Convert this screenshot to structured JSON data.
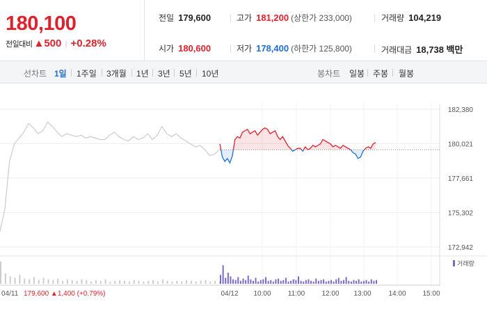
{
  "quote": {
    "current_price": "180,100",
    "change_label": "전일대비",
    "change_arrow": "▲",
    "change_value": "500",
    "change_pct": "+0.28%"
  },
  "stats": {
    "prev_close": {
      "label": "전일",
      "value": "179,600"
    },
    "high": {
      "label": "고가",
      "value": "181,200",
      "sub": "(상한가 233,000)"
    },
    "volume": {
      "label": "거래량",
      "value": "104,219"
    },
    "open": {
      "label": "시가",
      "value": "180,600"
    },
    "low": {
      "label": "저가",
      "value": "178,400",
      "sub": "(하한가 125,800)"
    },
    "turnover": {
      "label": "거래대금",
      "value": "18,738 백만"
    }
  },
  "line_tabs": {
    "label": "선차트",
    "items": [
      "1일",
      "1주일",
      "3개월",
      "1년",
      "3년",
      "5년",
      "10년"
    ],
    "selected": 0
  },
  "candle_tabs": {
    "label": "봉차트",
    "items": [
      "일봉",
      "주봉",
      "월봉"
    ]
  },
  "colors": {
    "up": "#e0212b",
    "down": "#1f6fd6",
    "prev_day": "#cccccc",
    "volume": "#7b68c8"
  },
  "chart_data": {
    "type": "line",
    "yticks": [
      "182,380",
      "180,021",
      "177,661",
      "175,302",
      "172,942"
    ],
    "ytick_values": [
      182380,
      180021,
      177661,
      175302,
      172942
    ],
    "ylim": [
      172942,
      182380
    ],
    "xticks": [
      "04/12",
      "10:00",
      "11:00",
      "12:00",
      "13:00",
      "14:00",
      "15:00"
    ],
    "prev_day_label": "04/11",
    "prev_day_summary": {
      "close": "179,600",
      "arrow": "▲",
      "change": "1,400",
      "pct": "(+0.79%)"
    },
    "baseline": 179600,
    "legend": "거래량",
    "prev_day_series": [
      174000,
      175500,
      178800,
      180000,
      180400,
      180800,
      181400,
      181100,
      180700,
      180900,
      181500,
      181200,
      180800,
      180500,
      180700,
      180600,
      180500,
      180600,
      180400,
      180500,
      180400,
      180300,
      180300,
      180600,
      180800,
      180500,
      180300,
      180200,
      180500,
      180300,
      180400,
      180700,
      180300,
      180600,
      181200,
      180700,
      180500,
      180700,
      180400,
      180200,
      180000,
      179800,
      179900,
      179600,
      179200,
      179300,
      179600
    ],
    "today_series": [
      180000,
      179100,
      178800,
      179000,
      178700,
      179200,
      180300,
      180500,
      180400,
      180800,
      180900,
      181000,
      180700,
      180800,
      180900,
      180600,
      180800,
      181000,
      181100,
      181000,
      180700,
      180800,
      180900,
      180500,
      180300,
      180500,
      180200,
      179900,
      179700,
      179500,
      179600,
      179700,
      179700,
      179500,
      179800,
      179600,
      179700,
      179900,
      179800,
      179900,
      180000,
      180300,
      180200,
      180100,
      180000,
      179800,
      179900,
      179800,
      179700,
      179900,
      179800,
      179700,
      179600,
      179400,
      179300,
      179000,
      179100,
      179500,
      179700,
      179800,
      179700,
      180000,
      180100
    ],
    "volume_today": [
      12,
      25,
      8,
      15,
      10,
      6,
      5,
      9,
      4,
      7,
      5,
      11,
      6,
      4,
      8,
      3,
      5,
      6,
      9,
      4,
      5,
      3,
      6,
      7,
      4,
      5,
      8,
      3,
      4,
      6,
      5,
      10,
      4,
      3,
      5,
      6,
      4,
      3,
      7,
      4,
      5,
      6,
      3,
      4,
      5,
      3,
      6,
      8,
      4,
      5,
      9,
      4,
      3,
      5,
      4,
      6,
      3,
      4,
      5,
      3,
      6,
      4,
      5
    ],
    "volume_prev": [
      30,
      14,
      10,
      8,
      12,
      7,
      6,
      9,
      5,
      8,
      6,
      5,
      7,
      4,
      6,
      5,
      4,
      6,
      5,
      3,
      5,
      4,
      6,
      3,
      4,
      5,
      4,
      3,
      5,
      4,
      3,
      4,
      5,
      3,
      6,
      4,
      3,
      4,
      3,
      5,
      4,
      3,
      4,
      5,
      3,
      4,
      3
    ]
  }
}
